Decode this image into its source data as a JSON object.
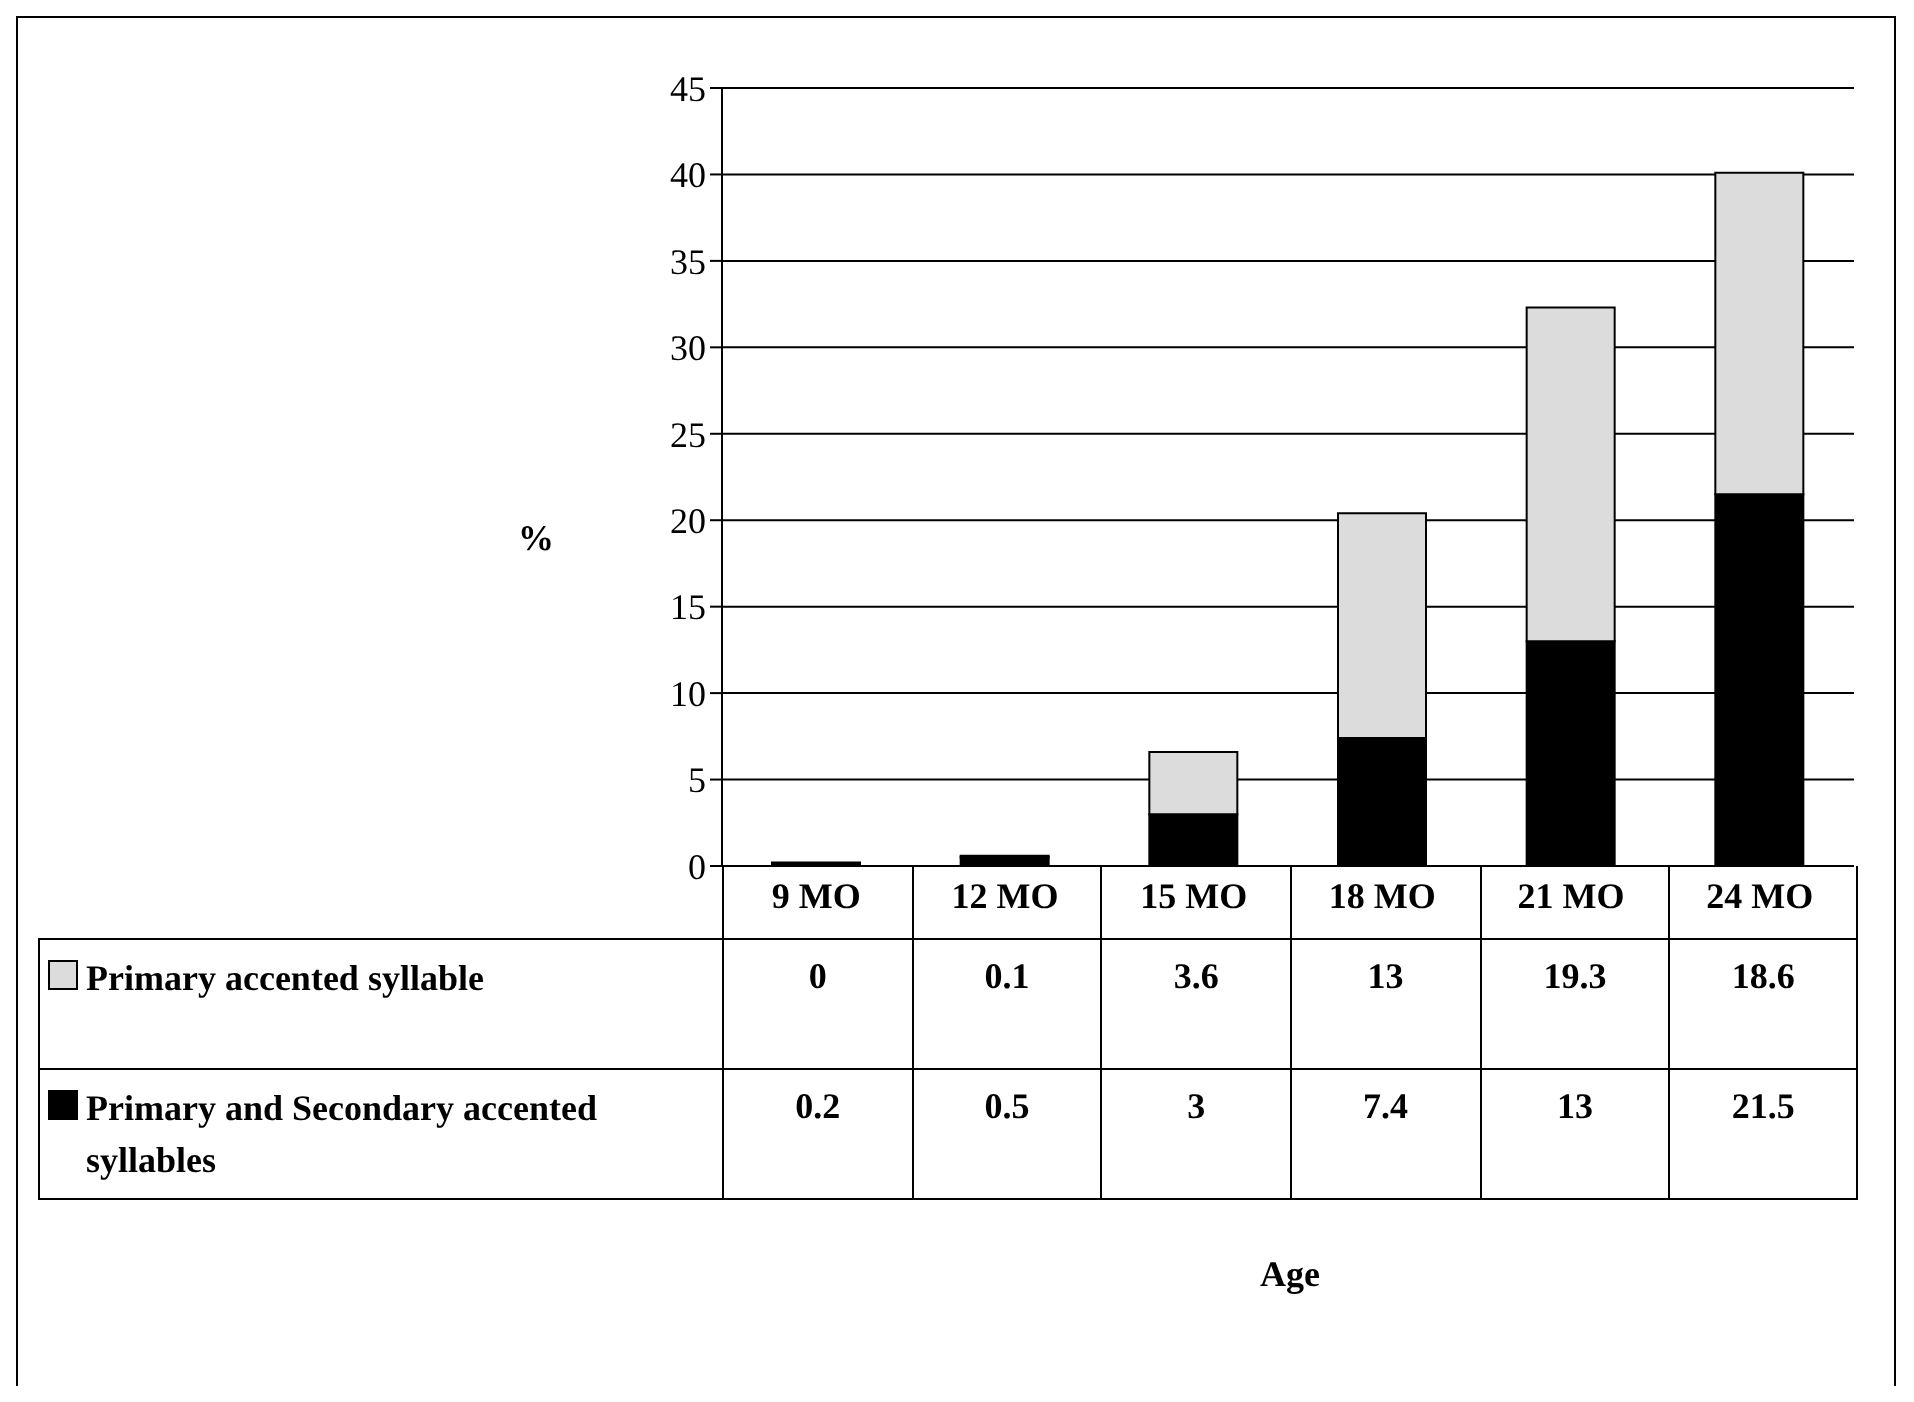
{
  "chart_data": {
    "type": "bar",
    "stacked": true,
    "ylabel": "%",
    "annotations": [
      "Age"
    ],
    "categories": [
      "9 MO",
      "12 MO",
      "15 MO",
      "18 MO",
      "21 MO",
      "24 MO"
    ],
    "series": [
      {
        "name": "Primary and Secondary accented syllables",
        "color": "#000000",
        "values": [
          0.2,
          0.5,
          3,
          7.4,
          13,
          21.5
        ]
      },
      {
        "name": "Primary accented syllable",
        "color": "#dcdcdc",
        "values": [
          0,
          0.1,
          3.6,
          13,
          19.3,
          18.6
        ]
      }
    ],
    "ylim": [
      0,
      45
    ],
    "yticks": [
      0,
      5,
      10,
      15,
      20,
      25,
      30,
      35,
      40,
      45
    ],
    "grid": "y",
    "legend": "bottom",
    "data_labels": true
  }
}
